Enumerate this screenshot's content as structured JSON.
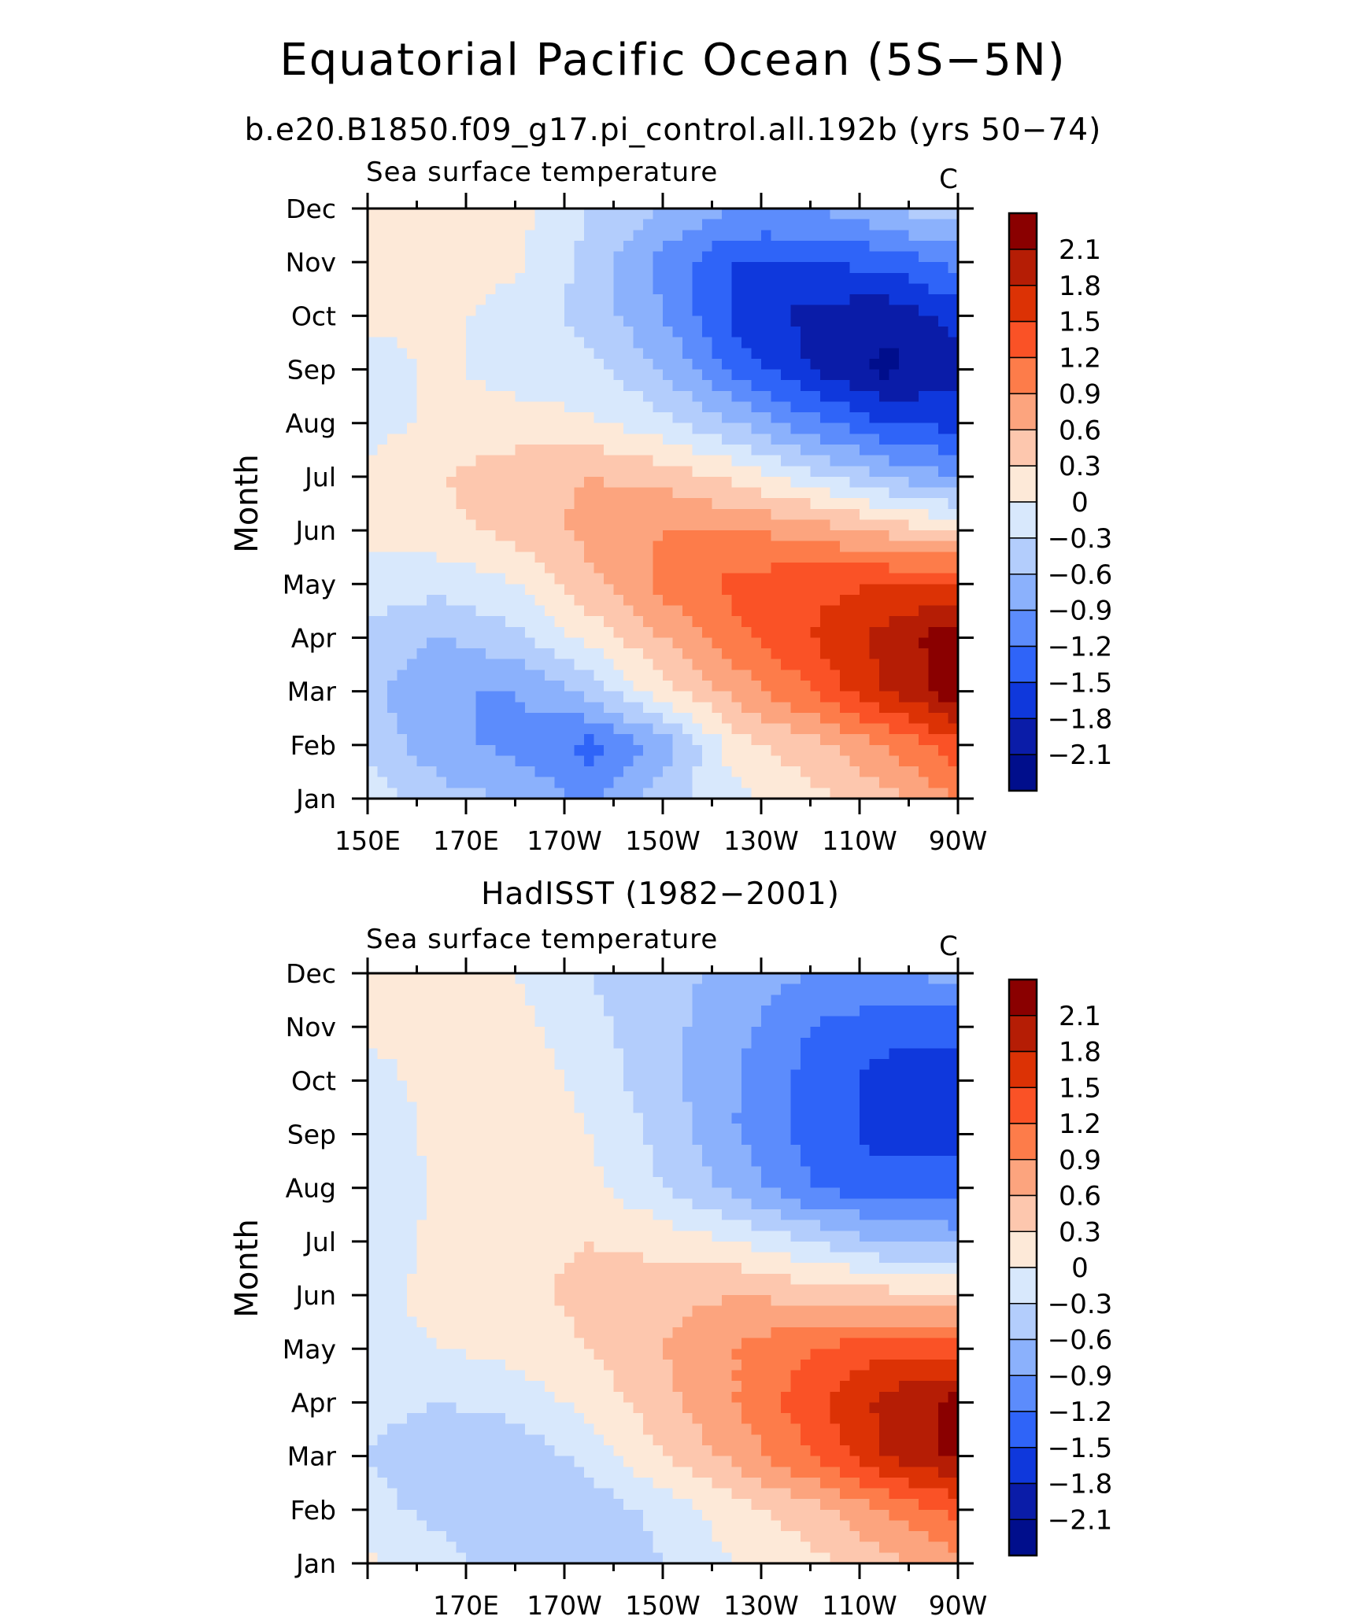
{
  "title": "Equatorial Pacific Ocean (5S−5N)",
  "subtitle": "b.e20.B1850.f09_g17.pi_control.all.192b (yrs 50−74)",
  "colorbar": {
    "levels": [
      "2.1",
      "1.8",
      "1.5",
      "1.2",
      "0.9",
      "0.6",
      "0.3",
      "0",
      "−0.3",
      "−0.6",
      "−0.9",
      "−1.2",
      "−1.5",
      "−1.8",
      "−2.1"
    ],
    "colors": [
      "#8a0000",
      "#b51d05",
      "#dc3205",
      "#fa5226",
      "#fd7c4a",
      "#fca47e",
      "#fdc7ae",
      "#fde9d8",
      "#d8e8fc",
      "#b3cdfc",
      "#8bb1fc",
      "#5c8cfc",
      "#2f64f8",
      "#0f38dc",
      "#0a1ca8",
      "#000e8c"
    ]
  },
  "chart_data": [
    {
      "type": "heatmap",
      "panel_title": "",
      "left_label": "Sea surface temperature",
      "right_label": "C",
      "xlabel": "",
      "ylabel": "Month",
      "x_ticklabels": [
        "150E",
        "170E",
        "170W",
        "150W",
        "130W",
        "110W",
        "90W"
      ],
      "y_ticklabels": [
        "Jan",
        "Feb",
        "Mar",
        "Apr",
        "May",
        "Jun",
        "Jul",
        "Aug",
        "Sep",
        "Oct",
        "Nov",
        "Dec"
      ],
      "xlim": [
        150,
        270
      ],
      "x_units": "degrees east longitude",
      "anomaly_c": {
        "x_knots": [
          150,
          165,
          180,
          195,
          210,
          225,
          240,
          255,
          270
        ],
        "month_knots": [
          1,
          2,
          3,
          4,
          5,
          6,
          7,
          8,
          9,
          10,
          11,
          12
        ],
        "rows": [
          [
            -0.1,
            -0.5,
            -0.6,
            -1.0,
            -0.4,
            -0.1,
            0.2,
            0.5,
            0.9
          ],
          [
            -0.4,
            -0.8,
            -1.0,
            -1.3,
            -0.8,
            0.2,
            0.5,
            0.9,
            1.4
          ],
          [
            -0.5,
            -0.9,
            -0.9,
            -0.5,
            0.2,
            0.7,
            1.2,
            1.8,
            2.3
          ],
          [
            -0.4,
            -0.6,
            -0.4,
            0.1,
            0.6,
            1.1,
            1.5,
            1.9,
            2.3
          ],
          [
            -0.1,
            -0.2,
            0.0,
            0.5,
            1.0,
            1.3,
            1.4,
            1.5,
            1.6
          ],
          [
            0.05,
            0.2,
            0.4,
            0.7,
            0.9,
            0.9,
            0.8,
            0.5,
            0.2
          ],
          [
            0.05,
            0.3,
            0.5,
            0.6,
            0.5,
            0.2,
            -0.2,
            -0.6,
            -0.9
          ],
          [
            -0.1,
            0.05,
            0.1,
            0.05,
            -0.2,
            -0.6,
            -1.1,
            -1.5,
            -1.6
          ],
          [
            -0.1,
            0.05,
            -0.1,
            -0.2,
            -0.6,
            -1.3,
            -1.8,
            -2.2,
            -1.9
          ],
          [
            0.05,
            0.05,
            -0.1,
            -0.4,
            -0.9,
            -1.6,
            -1.9,
            -2.0,
            -1.7
          ],
          [
            0.1,
            0.15,
            0.05,
            -0.4,
            -1.0,
            -1.5,
            -1.5,
            -1.4,
            -1.1
          ],
          [
            0.2,
            0.3,
            0.1,
            -0.3,
            -0.6,
            -0.9,
            -0.9,
            -0.6,
            -0.4
          ]
        ]
      }
    },
    {
      "type": "heatmap",
      "panel_title": "HadISST (1982−2001)",
      "left_label": "Sea surface temperature",
      "right_label": "C",
      "xlabel": "",
      "ylabel": "Month",
      "x_ticklabels": [
        "170E",
        "170W",
        "150W",
        "130W",
        "110W",
        "90W"
      ],
      "y_ticklabels": [
        "Jan",
        "Feb",
        "Mar",
        "Apr",
        "May",
        "Jun",
        "Jul",
        "Aug",
        "Sep",
        "Oct",
        "Nov",
        "Dec"
      ],
      "xlim": [
        150,
        270
      ],
      "x_units": "degrees east longitude",
      "anomaly_c": {
        "x_knots": [
          150,
          165,
          180,
          195,
          210,
          225,
          240,
          255,
          270
        ],
        "month_knots": [
          1,
          2,
          3,
          4,
          5,
          6,
          7,
          8,
          9,
          10,
          11,
          12
        ],
        "rows": [
          [
            0.05,
            -0.2,
            -0.5,
            -0.5,
            -0.3,
            0.0,
            0.2,
            0.5,
            0.8
          ],
          [
            -0.2,
            -0.4,
            -0.6,
            -0.5,
            -0.2,
            0.2,
            0.5,
            0.9,
            1.3
          ],
          [
            -0.3,
            -0.5,
            -0.5,
            -0.2,
            0.3,
            0.7,
            1.2,
            1.8,
            2.2
          ],
          [
            -0.2,
            -0.3,
            -0.2,
            0.1,
            0.5,
            0.9,
            1.4,
            1.9,
            2.2
          ],
          [
            -0.1,
            0.0,
            0.1,
            0.3,
            0.6,
            0.9,
            1.2,
            1.4,
            1.4
          ],
          [
            -0.1,
            0.1,
            0.2,
            0.4,
            0.5,
            0.6,
            0.5,
            0.4,
            0.3
          ],
          [
            -0.2,
            0.1,
            0.2,
            0.3,
            0.2,
            0.0,
            -0.3,
            -0.6,
            -0.7
          ],
          [
            -0.3,
            0.05,
            0.2,
            0.1,
            -0.3,
            -0.7,
            -1.2,
            -1.4,
            -1.4
          ],
          [
            -0.2,
            0.1,
            0.3,
            0.0,
            -0.4,
            -0.9,
            -1.3,
            -1.6,
            -1.6
          ],
          [
            -0.1,
            0.1,
            0.2,
            -0.1,
            -0.5,
            -0.9,
            -1.3,
            -1.6,
            -1.7
          ],
          [
            0.05,
            0.1,
            0.1,
            -0.2,
            -0.5,
            -0.8,
            -1.2,
            -1.4,
            -1.4
          ],
          [
            0.05,
            0.05,
            0.0,
            -0.3,
            -0.5,
            -0.7,
            -0.9,
            -0.9,
            -0.8
          ]
        ]
      }
    }
  ]
}
